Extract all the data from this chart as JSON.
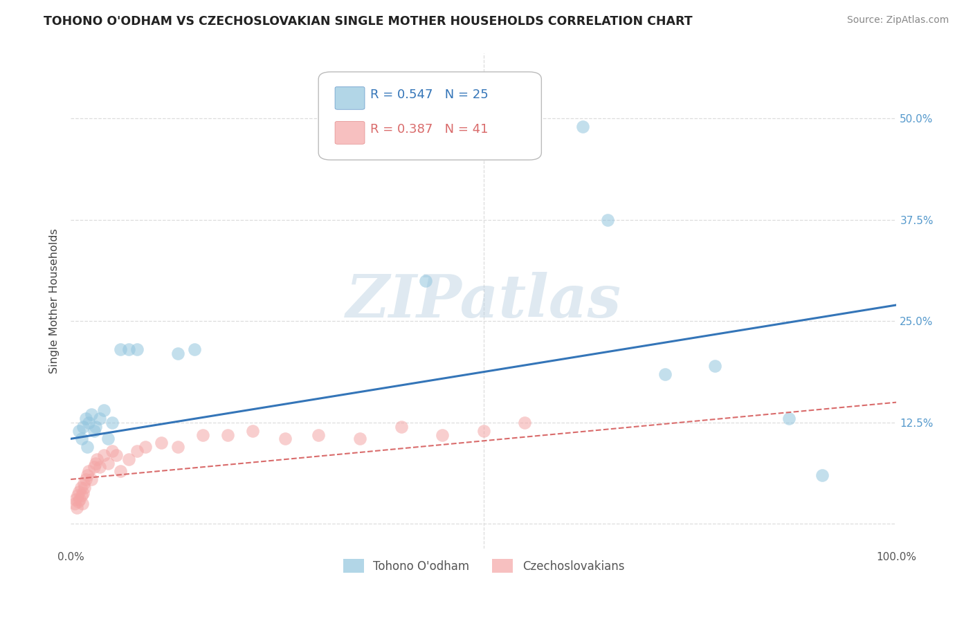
{
  "title": "TOHONO O'ODHAM VS CZECHOSLOVAKIAN SINGLE MOTHER HOUSEHOLDS CORRELATION CHART",
  "source": "Source: ZipAtlas.com",
  "ylabel": "Single Mother Households",
  "xlim": [
    0,
    1.0
  ],
  "ylim": [
    -0.03,
    0.58
  ],
  "yticks": [
    0.0,
    0.125,
    0.25,
    0.375,
    0.5
  ],
  "yticklabels_right": [
    "",
    "12.5%",
    "25.0%",
    "37.5%",
    "50.0%"
  ],
  "xticks": [
    0.0,
    0.25,
    0.5,
    0.75,
    1.0
  ],
  "xticklabels": [
    "0.0%",
    "",
    "",
    "",
    "100.0%"
  ],
  "legend_blue_r": "0.547",
  "legend_blue_n": "25",
  "legend_pink_r": "0.387",
  "legend_pink_n": "41",
  "blue_color": "#92c5de",
  "pink_color": "#f4a6a6",
  "blue_line_color": "#3475b8",
  "pink_line_color": "#d96b6b",
  "watermark_text": "ZIPatlas",
  "blue_scatter_x": [
    0.01,
    0.013,
    0.015,
    0.018,
    0.02,
    0.022,
    0.025,
    0.028,
    0.03,
    0.035,
    0.04,
    0.045,
    0.05,
    0.06,
    0.07,
    0.08,
    0.13,
    0.15,
    0.43,
    0.62,
    0.65,
    0.72,
    0.78,
    0.87,
    0.91
  ],
  "blue_scatter_y": [
    0.115,
    0.105,
    0.12,
    0.13,
    0.095,
    0.125,
    0.135,
    0.115,
    0.12,
    0.13,
    0.14,
    0.105,
    0.125,
    0.215,
    0.215,
    0.215,
    0.21,
    0.215,
    0.3,
    0.49,
    0.375,
    0.185,
    0.195,
    0.13,
    0.06
  ],
  "pink_scatter_x": [
    0.005,
    0.006,
    0.007,
    0.008,
    0.009,
    0.01,
    0.011,
    0.012,
    0.013,
    0.014,
    0.015,
    0.016,
    0.017,
    0.018,
    0.02,
    0.022,
    0.025,
    0.028,
    0.03,
    0.032,
    0.035,
    0.04,
    0.045,
    0.05,
    0.055,
    0.06,
    0.07,
    0.08,
    0.09,
    0.11,
    0.13,
    0.16,
    0.19,
    0.22,
    0.26,
    0.3,
    0.35,
    0.4,
    0.45,
    0.5,
    0.55
  ],
  "pink_scatter_y": [
    0.025,
    0.03,
    0.02,
    0.035,
    0.028,
    0.04,
    0.03,
    0.045,
    0.035,
    0.025,
    0.038,
    0.05,
    0.045,
    0.055,
    0.06,
    0.065,
    0.055,
    0.07,
    0.075,
    0.08,
    0.07,
    0.085,
    0.075,
    0.09,
    0.085,
    0.065,
    0.08,
    0.09,
    0.095,
    0.1,
    0.095,
    0.11,
    0.11,
    0.115,
    0.105,
    0.11,
    0.105,
    0.12,
    0.11,
    0.115,
    0.125
  ],
  "blue_line_x": [
    0.0,
    1.0
  ],
  "blue_line_y": [
    0.105,
    0.27
  ],
  "pink_line_x": [
    0.0,
    1.0
  ],
  "pink_line_y": [
    0.055,
    0.15
  ],
  "grid_yticks": [
    0.0,
    0.125,
    0.25,
    0.375,
    0.5
  ],
  "grid_color": "#dddddd",
  "background_color": "#ffffff"
}
